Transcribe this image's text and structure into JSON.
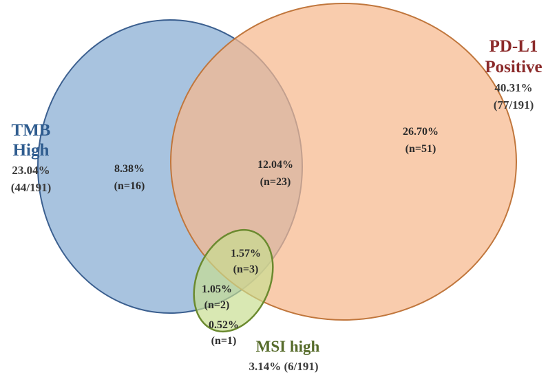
{
  "sets": {
    "tmb": {
      "title_line1": "TMB",
      "title_line2": "High",
      "percent": "23.04%",
      "fraction": "(44/191)",
      "fill_color": "#9fbcdc",
      "stroke_color": "#3b5f8f"
    },
    "pdl1": {
      "title_line1": "PD-L1",
      "title_line2": "Positive",
      "percent": "40.31%",
      "fraction": "(77/191)",
      "fill_color": "#f7b98e",
      "stroke_color": "#c0763c"
    },
    "msi": {
      "title": "MSI high",
      "summary": "3.14% (6/191)",
      "fill_color": "#c7dd8f",
      "stroke_color": "#6b8a2f"
    }
  },
  "regions": {
    "tmb_only": {
      "percent": "8.38%",
      "count": "(n=16)"
    },
    "tmb_pdl1": {
      "percent": "12.04%",
      "count": "(n=23)"
    },
    "pdl1_only": {
      "percent": "26.70%",
      "count": "(n=51)"
    },
    "all_three": {
      "percent": "1.57%",
      "count": "(n=3)"
    },
    "tmb_msi": {
      "percent": "1.05%",
      "count": "(n=2)"
    },
    "msi_only": {
      "percent": "0.52%",
      "count": "(n=1)"
    }
  }
}
